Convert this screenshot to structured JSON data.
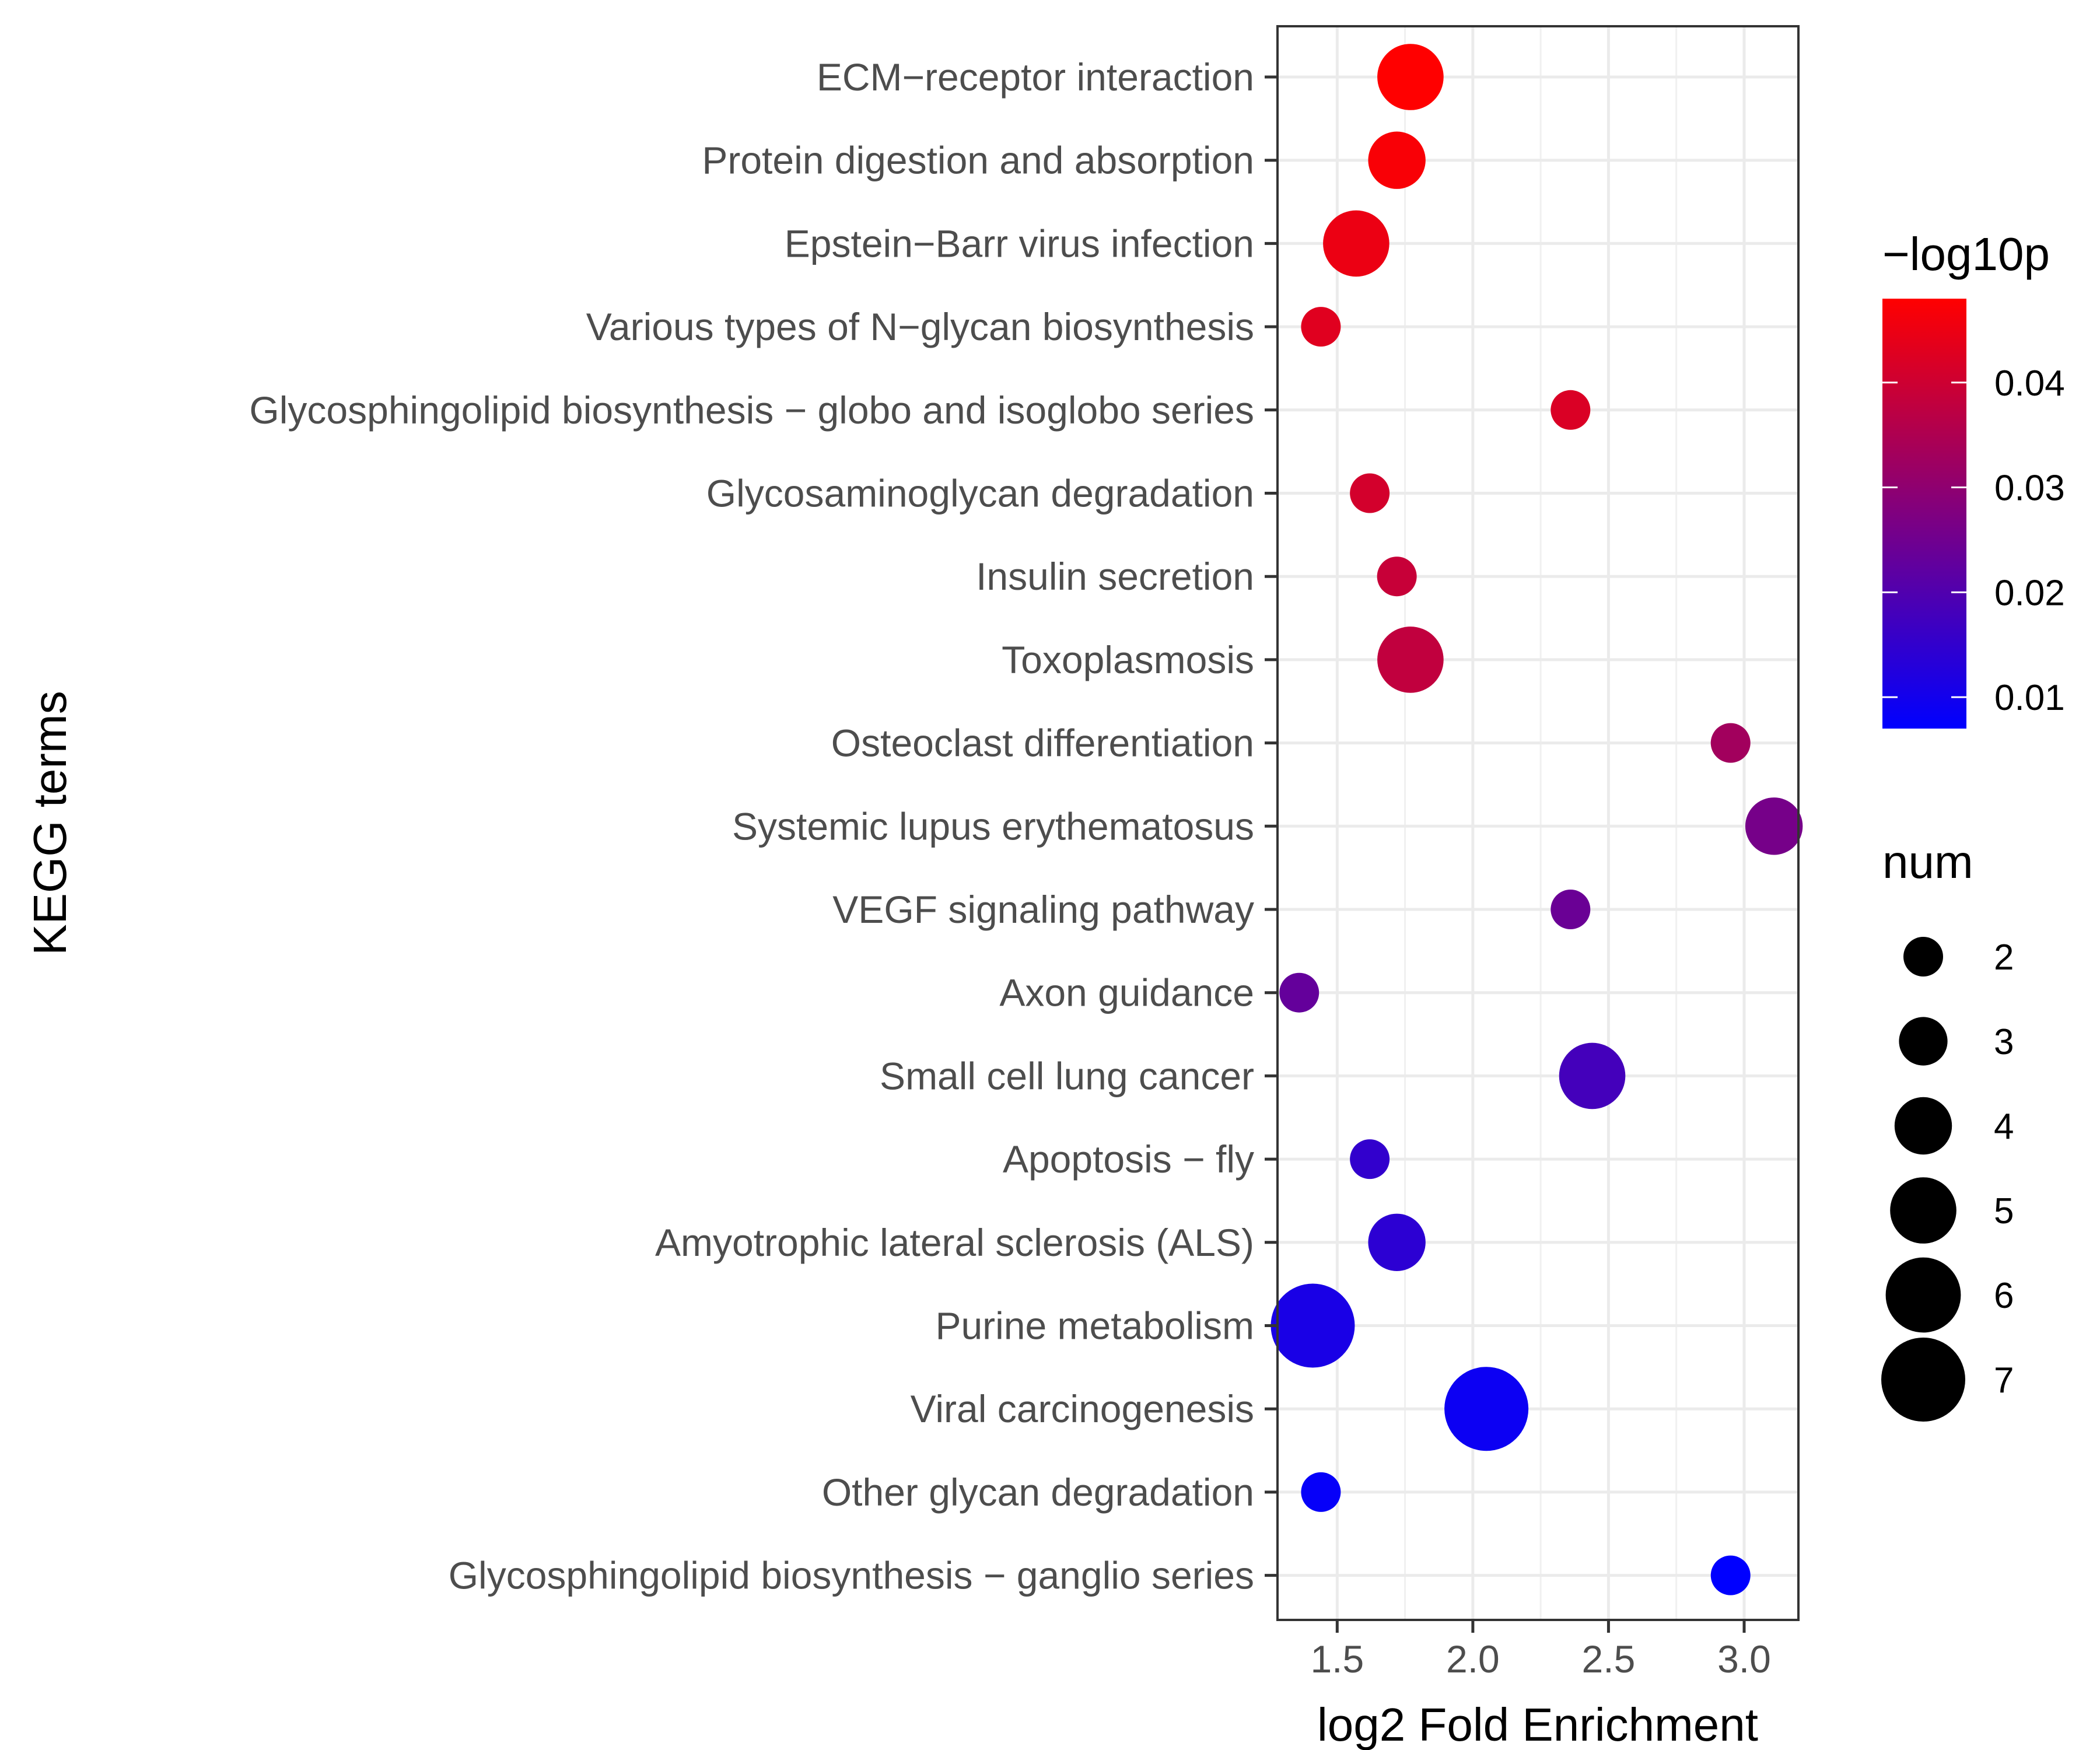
{
  "chart_data": {
    "type": "scatter",
    "title": "",
    "xlabel": "log2 Fold Enrichment",
    "ylabel": "KEGG terms",
    "xlim": [
      1.28,
      3.2
    ],
    "xticks": [
      1.5,
      2.0,
      2.5,
      3.0
    ],
    "xtick_labels": [
      "1.5",
      "2.0",
      "2.5",
      "3.0"
    ],
    "grid": true,
    "color_legend": {
      "title": "−log10p",
      "ticks": [
        0.01,
        0.02,
        0.03,
        0.04
      ],
      "tick_labels": [
        "0.01",
        "0.02",
        "0.03",
        "0.04"
      ],
      "range": [
        0.007,
        0.048
      ],
      "low_color": "#0000FF",
      "high_color": "#FF0000"
    },
    "size_legend": {
      "title": "num",
      "values": [
        2,
        3,
        4,
        5,
        6,
        7
      ],
      "labels": [
        "2",
        "3",
        "4",
        "5",
        "6",
        "7"
      ]
    },
    "points": [
      {
        "term": "ECM−receptor interaction",
        "x": 1.77,
        "num": 5,
        "p": 0.048
      },
      {
        "term": "Protein digestion and absorption",
        "x": 1.72,
        "num": 4,
        "p": 0.047
      },
      {
        "term": "Epstein−Barr virus infection",
        "x": 1.57,
        "num": 5,
        "p": 0.045
      },
      {
        "term": "Various types of N−glycan biosynthesis",
        "x": 1.44,
        "num": 2,
        "p": 0.043
      },
      {
        "term": "Glycosphingolipid biosynthesis − globo and isoglobo series",
        "x": 2.36,
        "num": 2,
        "p": 0.042
      },
      {
        "term": "Glycosaminoglycan degradation",
        "x": 1.62,
        "num": 2,
        "p": 0.041
      },
      {
        "term": "Insulin secretion",
        "x": 1.72,
        "num": 2,
        "p": 0.039
      },
      {
        "term": "Toxoplasmosis",
        "x": 1.77,
        "num": 5,
        "p": 0.038
      },
      {
        "term": "Osteoclast differentiation",
        "x": 2.95,
        "num": 2,
        "p": 0.033
      },
      {
        "term": "Systemic lupus erythematosus",
        "x": 3.11,
        "num": 4,
        "p": 0.026
      },
      {
        "term": "VEGF signaling pathway",
        "x": 2.36,
        "num": 2,
        "p": 0.024
      },
      {
        "term": "Axon guidance",
        "x": 1.36,
        "num": 2,
        "p": 0.023
      },
      {
        "term": "Small cell lung cancer",
        "x": 2.44,
        "num": 5,
        "p": 0.018
      },
      {
        "term": "Apoptosis − fly",
        "x": 1.62,
        "num": 2,
        "p": 0.015
      },
      {
        "term": "Amyotrophic lateral sclerosis (ALS)",
        "x": 1.72,
        "num": 4,
        "p": 0.014
      },
      {
        "term": "Purine metabolism",
        "x": 1.41,
        "num": 7,
        "p": 0.011
      },
      {
        "term": "Viral carcinogenesis",
        "x": 2.05,
        "num": 7,
        "p": 0.009
      },
      {
        "term": "Other glycan degradation",
        "x": 1.44,
        "num": 2,
        "p": 0.008
      },
      {
        "term": "Glycosphingolipid biosynthesis − ganglio series",
        "x": 2.95,
        "num": 2,
        "p": 0.007
      }
    ]
  }
}
